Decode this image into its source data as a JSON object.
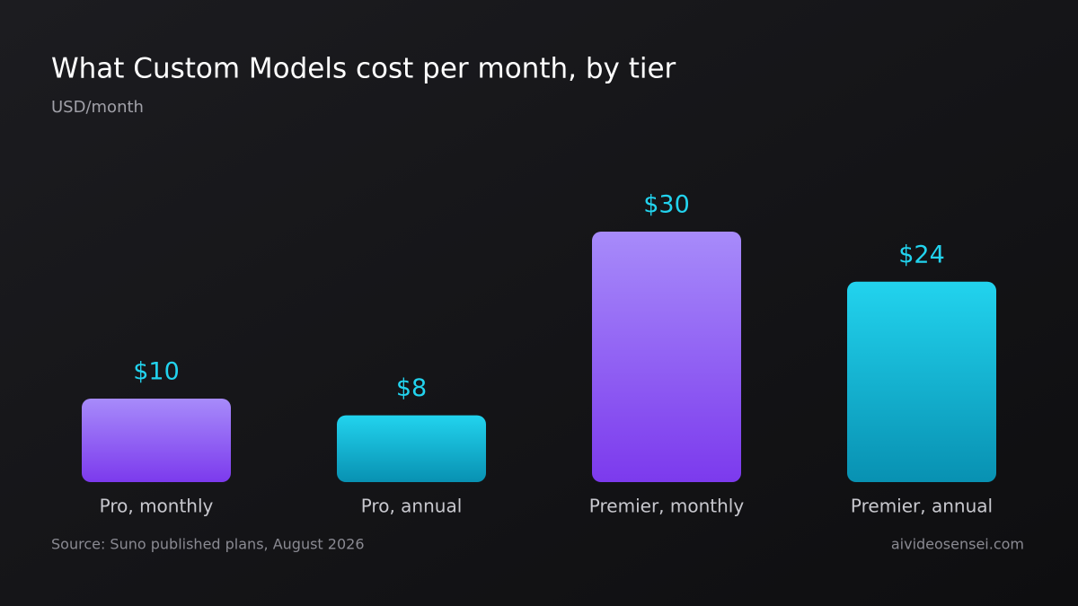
{
  "chart_data": {
    "type": "bar",
    "title": "What Custom Models cost per month, by tier",
    "subtitle": "USD/month",
    "categories": [
      "Pro, monthly",
      "Pro, annual",
      "Premier, monthly",
      "Premier, annual"
    ],
    "values": [
      10,
      8,
      30,
      24
    ],
    "value_labels": [
      "$10",
      "$8",
      "$30",
      "$24"
    ],
    "value_label_color": "#22d3ee",
    "bar_colors": [
      {
        "top": "#a78bfa",
        "bottom": "#7c3aed"
      },
      {
        "top": "#22d3ee",
        "bottom": "#0891b2"
      },
      {
        "top": "#a78bfa",
        "bottom": "#7c3aed"
      },
      {
        "top": "#22d3ee",
        "bottom": "#0891b2"
      }
    ],
    "source": "Source: Suno published plans, August 2026",
    "credit": "aivideosensei.com"
  }
}
